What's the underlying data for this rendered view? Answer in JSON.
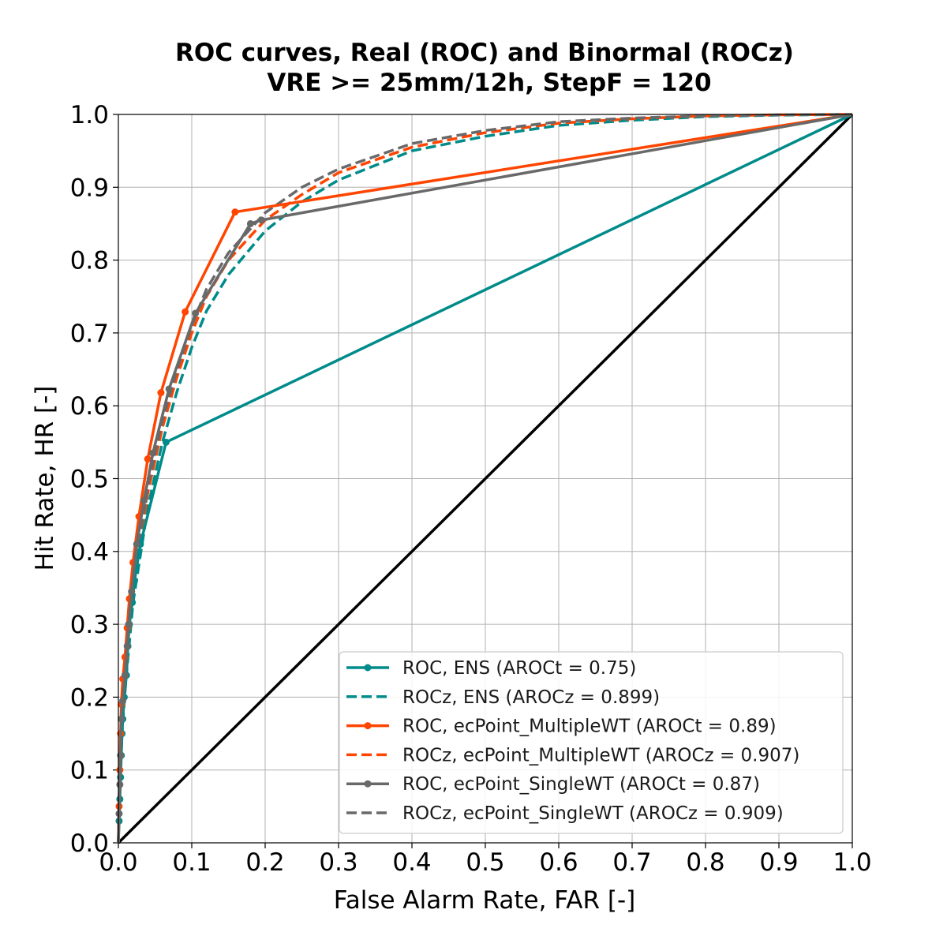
{
  "chart_data": {
    "type": "line",
    "title": [
      "ROC curves, Real (ROC) and Binormal (ROCz)",
      "VRE >= 25mm/12h, StepF = 120"
    ],
    "xlabel": "False Alarm Rate, FAR [-]",
    "ylabel": "Hit Rate, HR [-]",
    "xlim": [
      0,
      1
    ],
    "ylim": [
      0,
      1
    ],
    "xticks": [
      "0.0",
      "0.1",
      "0.2",
      "0.3",
      "0.4",
      "0.5",
      "0.6",
      "0.7",
      "0.8",
      "0.9",
      "1.0"
    ],
    "yticks": [
      "0.0",
      "0.1",
      "0.2",
      "0.3",
      "0.4",
      "0.5",
      "0.6",
      "0.7",
      "0.8",
      "0.9",
      "1.0"
    ],
    "grid": true,
    "legend_position": "lower-right",
    "diagonal_color": "#000000",
    "series": [
      {
        "name": "ROC, ENS (AROCt = 0.75)",
        "color": "#008B8B",
        "style": "solid",
        "markers": true,
        "points": [
          [
            0,
            0
          ],
          [
            0.001,
            0.03
          ],
          [
            0.002,
            0.06
          ],
          [
            0.003,
            0.09
          ],
          [
            0.004,
            0.12
          ],
          [
            0.005,
            0.15
          ],
          [
            0.006,
            0.17
          ],
          [
            0.008,
            0.2
          ],
          [
            0.011,
            0.23
          ],
          [
            0.013,
            0.27
          ],
          [
            0.015,
            0.3
          ],
          [
            0.019,
            0.33
          ],
          [
            0.022,
            0.36
          ],
          [
            0.03,
            0.41
          ],
          [
            0.065,
            0.55
          ],
          [
            1.0,
            1.0
          ]
        ]
      },
      {
        "name": "ROCz, ENS (AROCz = 0.899)",
        "color": "#008B8B",
        "style": "dashed",
        "markers": false,
        "points": [
          [
            0,
            0
          ],
          [
            0.001,
            0.05
          ],
          [
            0.003,
            0.11
          ],
          [
            0.005,
            0.15
          ],
          [
            0.01,
            0.22
          ],
          [
            0.02,
            0.33
          ],
          [
            0.04,
            0.46
          ],
          [
            0.06,
            0.55
          ],
          [
            0.08,
            0.62
          ],
          [
            0.1,
            0.68
          ],
          [
            0.12,
            0.73
          ],
          [
            0.15,
            0.78
          ],
          [
            0.2,
            0.84
          ],
          [
            0.25,
            0.88
          ],
          [
            0.3,
            0.91
          ],
          [
            0.4,
            0.95
          ],
          [
            0.5,
            0.97
          ],
          [
            0.6,
            0.985
          ],
          [
            0.7,
            0.992
          ],
          [
            0.8,
            0.997
          ],
          [
            0.9,
            0.999
          ],
          [
            1.0,
            1.0
          ]
        ]
      },
      {
        "name": "ROC, ecPoint_MultipleWT (AROCt = 0.89)",
        "color": "#FF4500",
        "style": "solid",
        "markers": true,
        "points": [
          [
            0,
            0
          ],
          [
            0.001,
            0.05
          ],
          [
            0.002,
            0.1
          ],
          [
            0.003,
            0.15
          ],
          [
            0.004,
            0.19
          ],
          [
            0.006,
            0.225
          ],
          [
            0.009,
            0.255
          ],
          [
            0.012,
            0.295
          ],
          [
            0.015,
            0.335
          ],
          [
            0.02,
            0.385
          ],
          [
            0.028,
            0.448
          ],
          [
            0.04,
            0.527
          ],
          [
            0.058,
            0.618
          ],
          [
            0.091,
            0.729
          ],
          [
            0.159,
            0.866
          ],
          [
            1.0,
            1.0
          ]
        ]
      },
      {
        "name": "ROCz, ecPoint_MultipleWT (AROCz = 0.907)",
        "color": "#FF4500",
        "style": "dashed",
        "markers": false,
        "points": [
          [
            0,
            0
          ],
          [
            0.001,
            0.06
          ],
          [
            0.003,
            0.12
          ],
          [
            0.005,
            0.16
          ],
          [
            0.01,
            0.24
          ],
          [
            0.02,
            0.35
          ],
          [
            0.04,
            0.48
          ],
          [
            0.06,
            0.57
          ],
          [
            0.08,
            0.64
          ],
          [
            0.1,
            0.7
          ],
          [
            0.12,
            0.75
          ],
          [
            0.15,
            0.8
          ],
          [
            0.2,
            0.855
          ],
          [
            0.25,
            0.89
          ],
          [
            0.3,
            0.92
          ],
          [
            0.4,
            0.955
          ],
          [
            0.5,
            0.975
          ],
          [
            0.6,
            0.988
          ],
          [
            0.7,
            0.994
          ],
          [
            0.8,
            0.998
          ],
          [
            0.9,
            0.9995
          ],
          [
            1.0,
            1.0
          ]
        ]
      },
      {
        "name": "ROC, ecPoint_SingleWT (AROCt = 0.87)",
        "color": "#696969",
        "style": "solid",
        "markers": true,
        "points": [
          [
            0,
            0
          ],
          [
            0.001,
            0.04
          ],
          [
            0.002,
            0.08
          ],
          [
            0.003,
            0.12
          ],
          [
            0.004,
            0.17
          ],
          [
            0.006,
            0.195
          ],
          [
            0.009,
            0.23
          ],
          [
            0.012,
            0.27
          ],
          [
            0.014,
            0.3
          ],
          [
            0.018,
            0.345
          ],
          [
            0.025,
            0.41
          ],
          [
            0.035,
            0.47
          ],
          [
            0.047,
            0.535
          ],
          [
            0.069,
            0.623
          ],
          [
            0.105,
            0.727
          ],
          [
            0.18,
            0.85
          ],
          [
            0.195,
            0.855
          ],
          [
            1.0,
            1.0
          ]
        ]
      },
      {
        "name": "ROCz, ecPoint_SingleWT (AROCz = 0.909)",
        "color": "#696969",
        "style": "dashed",
        "markers": false,
        "points": [
          [
            0,
            0
          ],
          [
            0.001,
            0.06
          ],
          [
            0.003,
            0.12
          ],
          [
            0.005,
            0.16
          ],
          [
            0.01,
            0.245
          ],
          [
            0.02,
            0.355
          ],
          [
            0.04,
            0.49
          ],
          [
            0.06,
            0.58
          ],
          [
            0.08,
            0.65
          ],
          [
            0.1,
            0.71
          ],
          [
            0.12,
            0.76
          ],
          [
            0.15,
            0.81
          ],
          [
            0.2,
            0.865
          ],
          [
            0.25,
            0.9
          ],
          [
            0.3,
            0.925
          ],
          [
            0.4,
            0.96
          ],
          [
            0.5,
            0.978
          ],
          [
            0.6,
            0.99
          ],
          [
            0.7,
            0.995
          ],
          [
            0.8,
            0.998
          ],
          [
            0.9,
            0.9995
          ],
          [
            1.0,
            1.0
          ]
        ]
      }
    ]
  }
}
